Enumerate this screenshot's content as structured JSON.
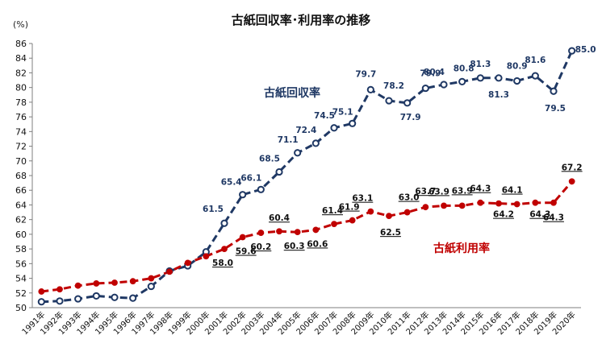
{
  "chart_data": {
    "type": "line",
    "title": "古紙回収率･利用率の推移",
    "ylabel": "(%)",
    "ylim": [
      50,
      86
    ],
    "ytick_step": 2,
    "grid": false,
    "categories": [
      "1991年",
      "1992年",
      "1993年",
      "1994年",
      "1995年",
      "1996年",
      "1997年",
      "1998年",
      "1999年",
      "2000年",
      "2001年",
      "2002年",
      "2003年",
      "2004年",
      "2005年",
      "2006年",
      "2007年",
      "2008年",
      "2009年",
      "2010年",
      "2011年",
      "2012年",
      "2013年",
      "2014年",
      "2015年",
      "2016年",
      "2017年",
      "2018年",
      "2019年",
      "2020年"
    ],
    "series": [
      {
        "name": "古紙回収率",
        "color": "#1f3864",
        "marker": "open-circle",
        "line_style": "dashed",
        "values": [
          50.8,
          50.9,
          51.2,
          51.6,
          51.4,
          51.3,
          52.9,
          55.0,
          55.7,
          57.6,
          61.5,
          65.4,
          66.1,
          68.5,
          71.1,
          72.4,
          74.5,
          75.1,
          79.7,
          78.2,
          77.9,
          79.9,
          80.4,
          80.8,
          81.3,
          81.3,
          80.9,
          81.6,
          79.5,
          85.0
        ],
        "labels": [
          "",
          "",
          "",
          "",
          "",
          "",
          "",
          "",
          "",
          "",
          "61.5",
          "65.4",
          "66.1",
          "68.5",
          "71.1",
          "72.4",
          "74.5",
          "75.1",
          "79.7",
          "78.2",
          "77.9",
          "79.9",
          "80.4",
          "80.8",
          "81.3",
          "81.3",
          "80.9",
          "81.6",
          "79.5",
          "85.0"
        ]
      },
      {
        "name": "古紙利用率",
        "color": "#c00000",
        "marker": "filled-dot",
        "line_style": "dashed",
        "values": [
          52.2,
          52.5,
          53.0,
          53.3,
          53.4,
          53.6,
          54.0,
          54.9,
          56.1,
          57.0,
          58.0,
          59.6,
          60.2,
          60.4,
          60.3,
          60.6,
          61.4,
          61.9,
          63.1,
          62.5,
          63.0,
          63.7,
          63.9,
          63.9,
          64.3,
          64.2,
          64.1,
          64.3,
          64.3,
          67.2
        ],
        "labels": [
          "",
          "",
          "",
          "",
          "",
          "",
          "",
          "",
          "",
          "",
          "58.0",
          "59.6",
          "60.2",
          "60.4",
          "60.3",
          "60.6",
          "61.4",
          "61.9",
          "63.1",
          "62.5",
          "63.0",
          "63.7",
          "63.9",
          "63.9",
          "64.3",
          "64.2",
          "64.1",
          "64.3",
          "64.3",
          "67.2"
        ]
      }
    ]
  }
}
